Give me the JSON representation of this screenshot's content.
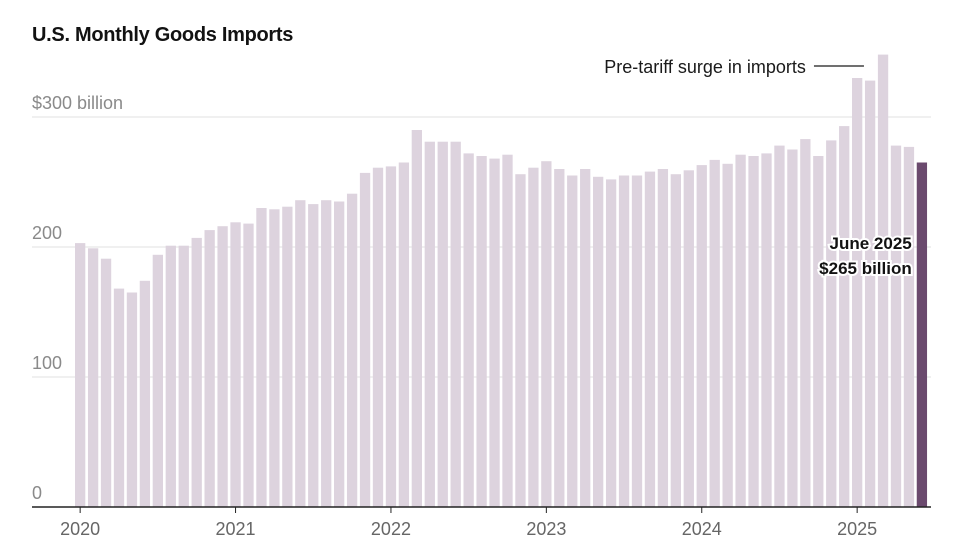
{
  "title": "U.S. Monthly Goods Imports",
  "chart_data": {
    "type": "bar",
    "title": "U.S. Monthly Goods Imports",
    "unit": "billion",
    "y_tick_labels": [
      "$300 billion",
      "200",
      "100",
      "0"
    ],
    "y_ticks": [
      300,
      200,
      100,
      0
    ],
    "ylim": [
      0,
      350
    ],
    "grid": true,
    "x_tick_labels": [
      "2020",
      "2021",
      "2022",
      "2023",
      "2024",
      "2025"
    ],
    "start": "2020-01",
    "end": "2025-06",
    "categories": [
      "2020-01",
      "2020-02",
      "2020-03",
      "2020-04",
      "2020-05",
      "2020-06",
      "2020-07",
      "2020-08",
      "2020-09",
      "2020-10",
      "2020-11",
      "2020-12",
      "2021-01",
      "2021-02",
      "2021-03",
      "2021-04",
      "2021-05",
      "2021-06",
      "2021-07",
      "2021-08",
      "2021-09",
      "2021-10",
      "2021-11",
      "2021-12",
      "2022-01",
      "2022-02",
      "2022-03",
      "2022-04",
      "2022-05",
      "2022-06",
      "2022-07",
      "2022-08",
      "2022-09",
      "2022-10",
      "2022-11",
      "2022-12",
      "2023-01",
      "2023-02",
      "2023-03",
      "2023-04",
      "2023-05",
      "2023-06",
      "2023-07",
      "2023-08",
      "2023-09",
      "2023-10",
      "2023-11",
      "2023-12",
      "2024-01",
      "2024-02",
      "2024-03",
      "2024-04",
      "2024-05",
      "2024-06",
      "2024-07",
      "2024-08",
      "2024-09",
      "2024-10",
      "2024-11",
      "2024-12",
      "2025-01",
      "2025-02",
      "2025-03",
      "2025-04",
      "2025-05",
      "2025-06"
    ],
    "values": [
      203,
      199,
      191,
      168,
      165,
      174,
      194,
      201,
      201,
      207,
      213,
      216,
      219,
      218,
      230,
      229,
      231,
      236,
      233,
      236,
      235,
      241,
      257,
      261,
      262,
      265,
      290,
      281,
      281,
      281,
      272,
      270,
      268,
      271,
      256,
      261,
      266,
      260,
      255,
      260,
      254,
      252,
      255,
      255,
      258,
      260,
      256,
      259,
      263,
      267,
      264,
      271,
      270,
      272,
      278,
      275,
      283,
      270,
      282,
      293,
      330,
      328,
      348,
      278,
      277,
      265
    ],
    "base_color": "#ddd3de",
    "highlight_color": "#6b4a6e",
    "highlight_index": 65,
    "annotations": {
      "surge": "Pre-tariff surge in imports",
      "highlight_date": "June 2025",
      "highlight_value": "$265 billion"
    }
  }
}
